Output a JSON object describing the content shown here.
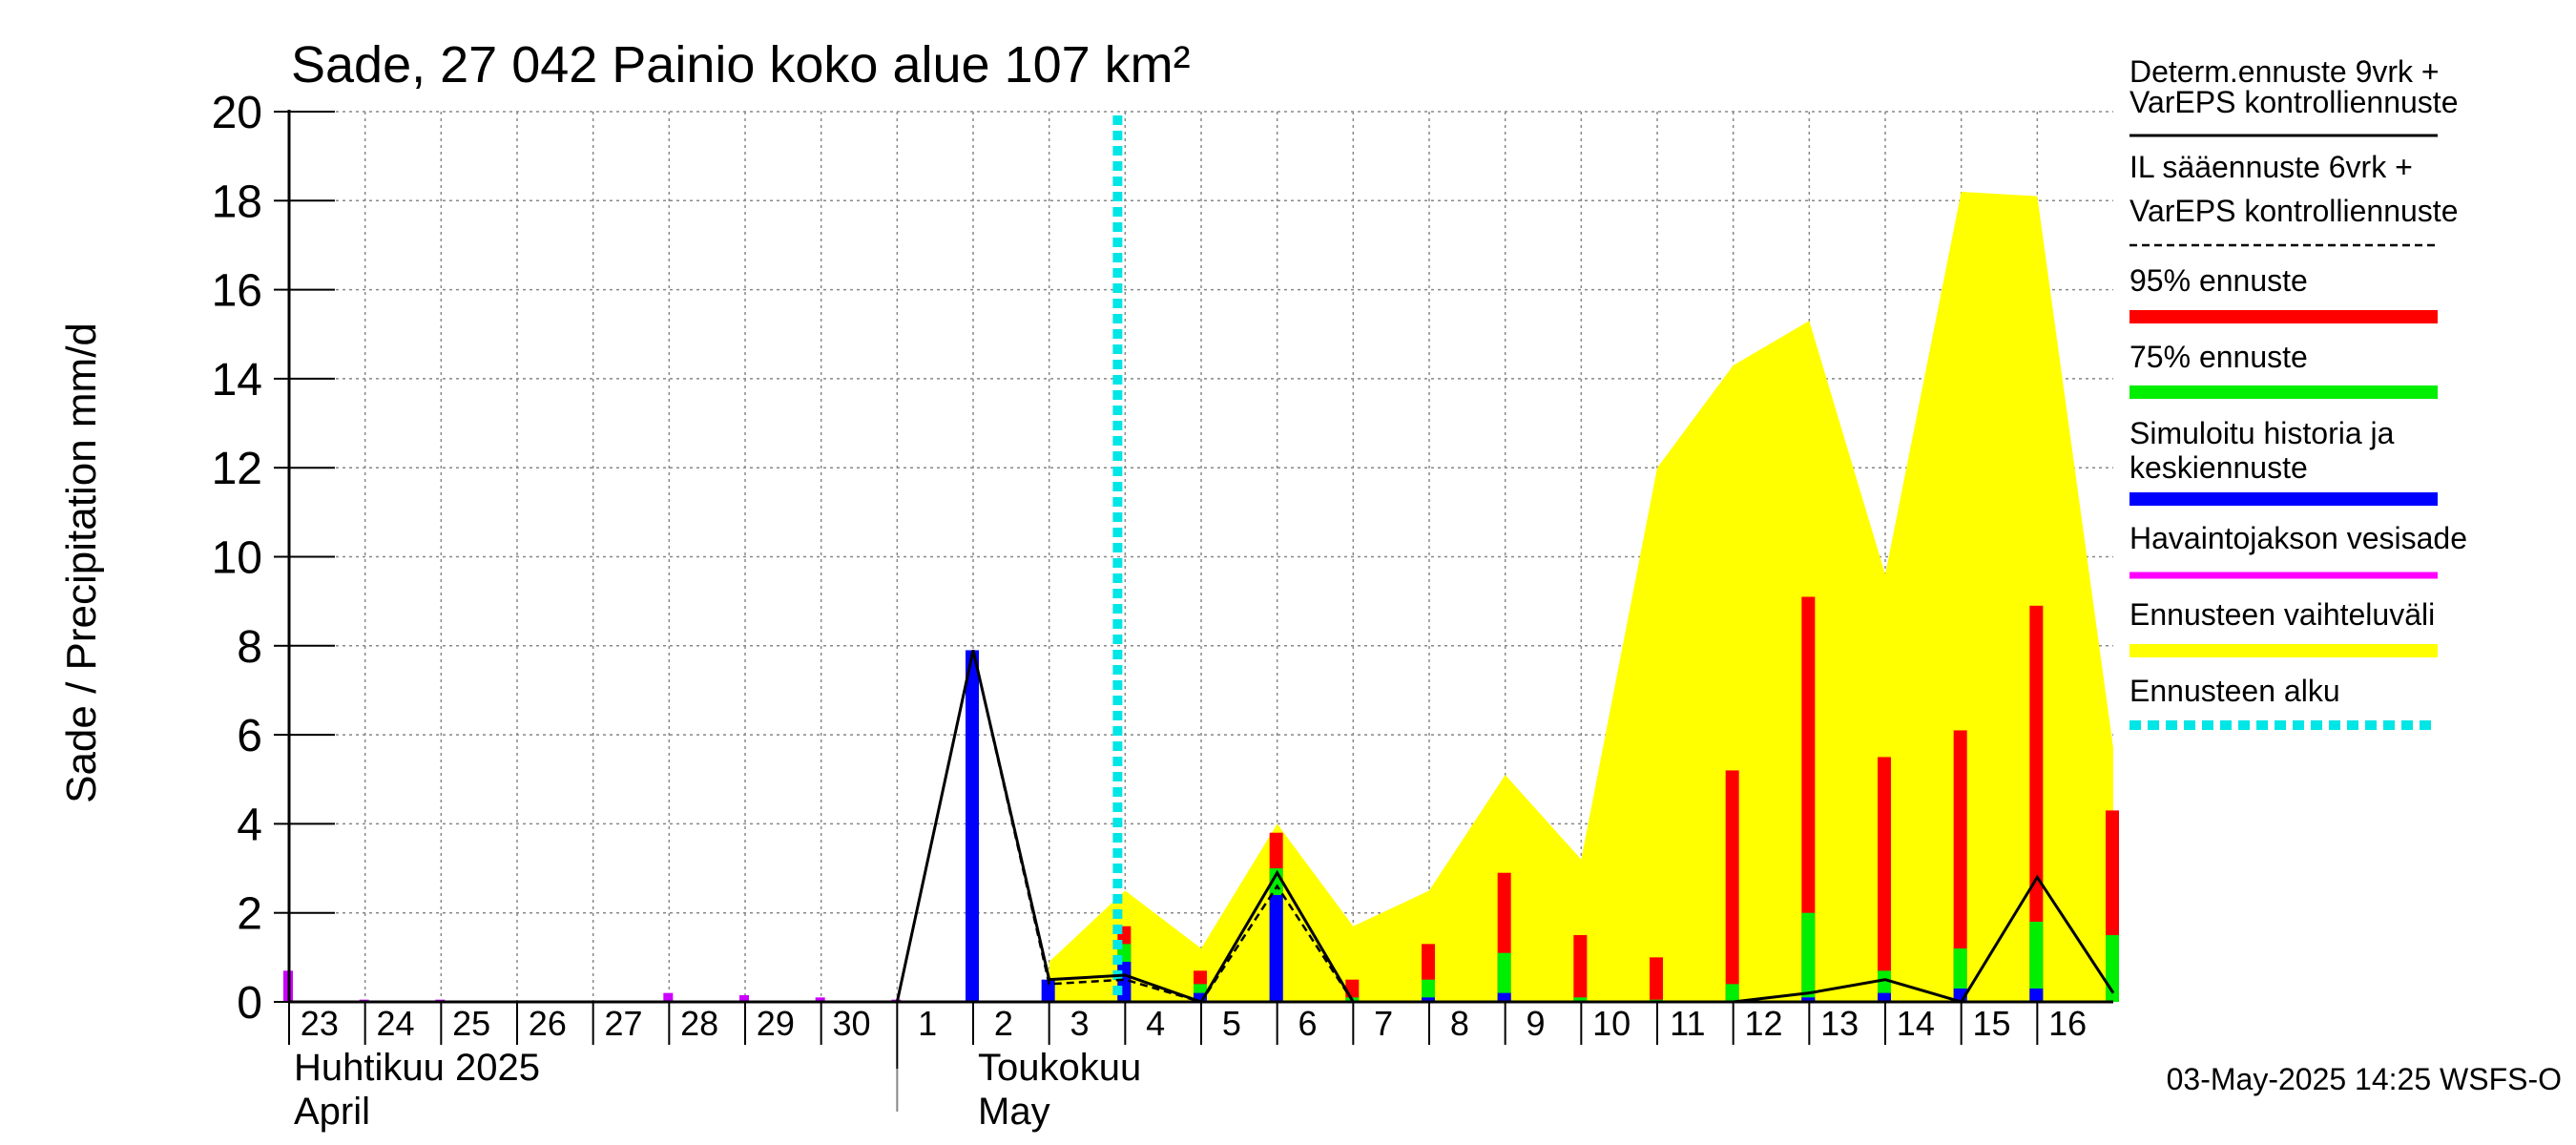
{
  "chart_data": {
    "type": "bar",
    "title": "Sade, 27 042 Painio koko alue 107 km²",
    "ylabel": "Sade / Precipitation   mm/d",
    "ylim": [
      0,
      20
    ],
    "yticks": [
      "0",
      "2",
      "4",
      "6",
      "8",
      "10",
      "12",
      "14",
      "16",
      "18",
      "20"
    ],
    "x_day_labels": [
      "23",
      "24",
      "25",
      "26",
      "27",
      "28",
      "29",
      "30",
      "1",
      "2",
      "3",
      "4",
      "5",
      "6",
      "7",
      "8",
      "9",
      "10",
      "11",
      "12",
      "13",
      "14",
      "15",
      "16"
    ],
    "month_labels": [
      {
        "fi": "Huhtikuu  2025",
        "en": "April"
      },
      {
        "fi": "Toukokuu",
        "en": "May"
      }
    ],
    "forecast_start_day": 10.9,
    "observed_precip": [
      {
        "day": 0,
        "value": 0.7
      },
      {
        "day": 1,
        "value": 0.05
      },
      {
        "day": 2,
        "value": 0.05
      },
      {
        "day": 5,
        "value": 0.2
      },
      {
        "day": 6,
        "value": 0.15
      },
      {
        "day": 7,
        "value": 0.1
      },
      {
        "day": 8,
        "value": 0.05
      }
    ],
    "simulated_history": [
      {
        "day": 9,
        "value": 7.9
      },
      {
        "day": 10,
        "value": 0.5
      }
    ],
    "forecast_bars": [
      {
        "day": 11,
        "p95": 1.7,
        "p75": 1.3,
        "mean": 0.9
      },
      {
        "day": 12,
        "p95": 0.7,
        "p75": 0.4,
        "mean": 0.2
      },
      {
        "day": 13,
        "p95": 3.8,
        "p75": 3.0,
        "mean": 2.4
      },
      {
        "day": 14,
        "p95": 0.5,
        "p75": 0.1,
        "mean": 0.0
      },
      {
        "day": 15,
        "p95": 1.3,
        "p75": 0.5,
        "mean": 0.1
      },
      {
        "day": 16,
        "p95": 2.9,
        "p75": 1.1,
        "mean": 0.2
      },
      {
        "day": 17,
        "p95": 1.5,
        "p75": 0.1,
        "mean": 0.0
      },
      {
        "day": 18,
        "p95": 1.0,
        "p75": 0.05,
        "mean": 0.0
      },
      {
        "day": 19,
        "p95": 5.2,
        "p75": 0.4,
        "mean": 0.0
      },
      {
        "day": 20,
        "p95": 9.1,
        "p75": 2.0,
        "mean": 0.1
      },
      {
        "day": 21,
        "p95": 5.5,
        "p75": 0.7,
        "mean": 0.2
      },
      {
        "day": 22,
        "p95": 6.1,
        "p75": 1.2,
        "mean": 0.3
      },
      {
        "day": 23,
        "p95": 8.9,
        "p75": 1.8,
        "mean": 0.3
      },
      {
        "day": 24,
        "p95": 4.3,
        "p75": 1.5,
        "mean": 0.0
      }
    ],
    "ensemble_range_upper": [
      {
        "day": 10,
        "value": 0.9
      },
      {
        "day": 11,
        "value": 2.5
      },
      {
        "day": 12,
        "value": 1.2
      },
      {
        "day": 13,
        "value": 4.0
      },
      {
        "day": 14,
        "value": 1.7
      },
      {
        "day": 15,
        "value": 2.5
      },
      {
        "day": 16,
        "value": 5.1
      },
      {
        "day": 17,
        "value": 3.2
      },
      {
        "day": 18,
        "value": 12.0
      },
      {
        "day": 19,
        "value": 14.3
      },
      {
        "day": 20,
        "value": 15.3
      },
      {
        "day": 21,
        "value": 9.6
      },
      {
        "day": 22,
        "value": 18.2
      },
      {
        "day": 23,
        "value": 18.1
      },
      {
        "day": 24,
        "value": 5.7
      }
    ],
    "deterministic_line": [
      {
        "day": 8,
        "value": 0.0
      },
      {
        "day": 9,
        "value": 7.9
      },
      {
        "day": 10,
        "value": 0.5
      },
      {
        "day": 11,
        "value": 0.6
      },
      {
        "day": 12,
        "value": 0.0
      },
      {
        "day": 13,
        "value": 2.9
      },
      {
        "day": 14,
        "value": 0.0
      },
      {
        "day": 15,
        "value": 0.0
      },
      {
        "day": 16,
        "value": 0.0
      },
      {
        "day": 17,
        "value": 0.0
      },
      {
        "day": 18,
        "value": 0.0
      },
      {
        "day": 19,
        "value": 0.0
      },
      {
        "day": 20,
        "value": 0.2
      },
      {
        "day": 21,
        "value": 0.5
      },
      {
        "day": 22,
        "value": 0.0
      },
      {
        "day": 23,
        "value": 2.8
      },
      {
        "day": 24,
        "value": 0.2
      }
    ],
    "il_line": [
      {
        "day": 8,
        "value": 0.0
      },
      {
        "day": 9,
        "value": 7.9
      },
      {
        "day": 10,
        "value": 0.4
      },
      {
        "day": 11,
        "value": 0.5
      },
      {
        "day": 12,
        "value": 0.0
      },
      {
        "day": 13,
        "value": 2.6
      },
      {
        "day": 14,
        "value": 0.0
      }
    ],
    "legend": [
      {
        "label_lines": [
          "Determ.ennuste 9vrk +",
          "VarEPS kontrolliennuste"
        ],
        "style": "solid-thin",
        "color": "#000000"
      },
      {
        "label_lines": [
          "IL sääennuste 6vrk  +",
          "  VarEPS kontrolliennuste"
        ],
        "style": "dashed-thin",
        "color": "#000000"
      },
      {
        "label_lines": [
          "95% ennuste"
        ],
        "style": "thick",
        "color": "#ff0000"
      },
      {
        "label_lines": [
          "75% ennuste"
        ],
        "style": "thick",
        "color": "#00ee00"
      },
      {
        "label_lines": [
          "Simuloitu historia ja",
          "keskiennuste"
        ],
        "style": "thick",
        "color": "#0000ff"
      },
      {
        "label_lines": [
          "Havaintojakson vesisade"
        ],
        "style": "medium",
        "color": "#ff00ff"
      },
      {
        "label_lines": [
          "Ennusteen vaihteluväli"
        ],
        "style": "thick",
        "color": "#ffff00"
      },
      {
        "label_lines": [
          "Ennusteen alku"
        ],
        "style": "dotted-thick",
        "color": "#00e5e5"
      }
    ],
    "footer": "03-May-2025 14:25 WSFS-O"
  }
}
